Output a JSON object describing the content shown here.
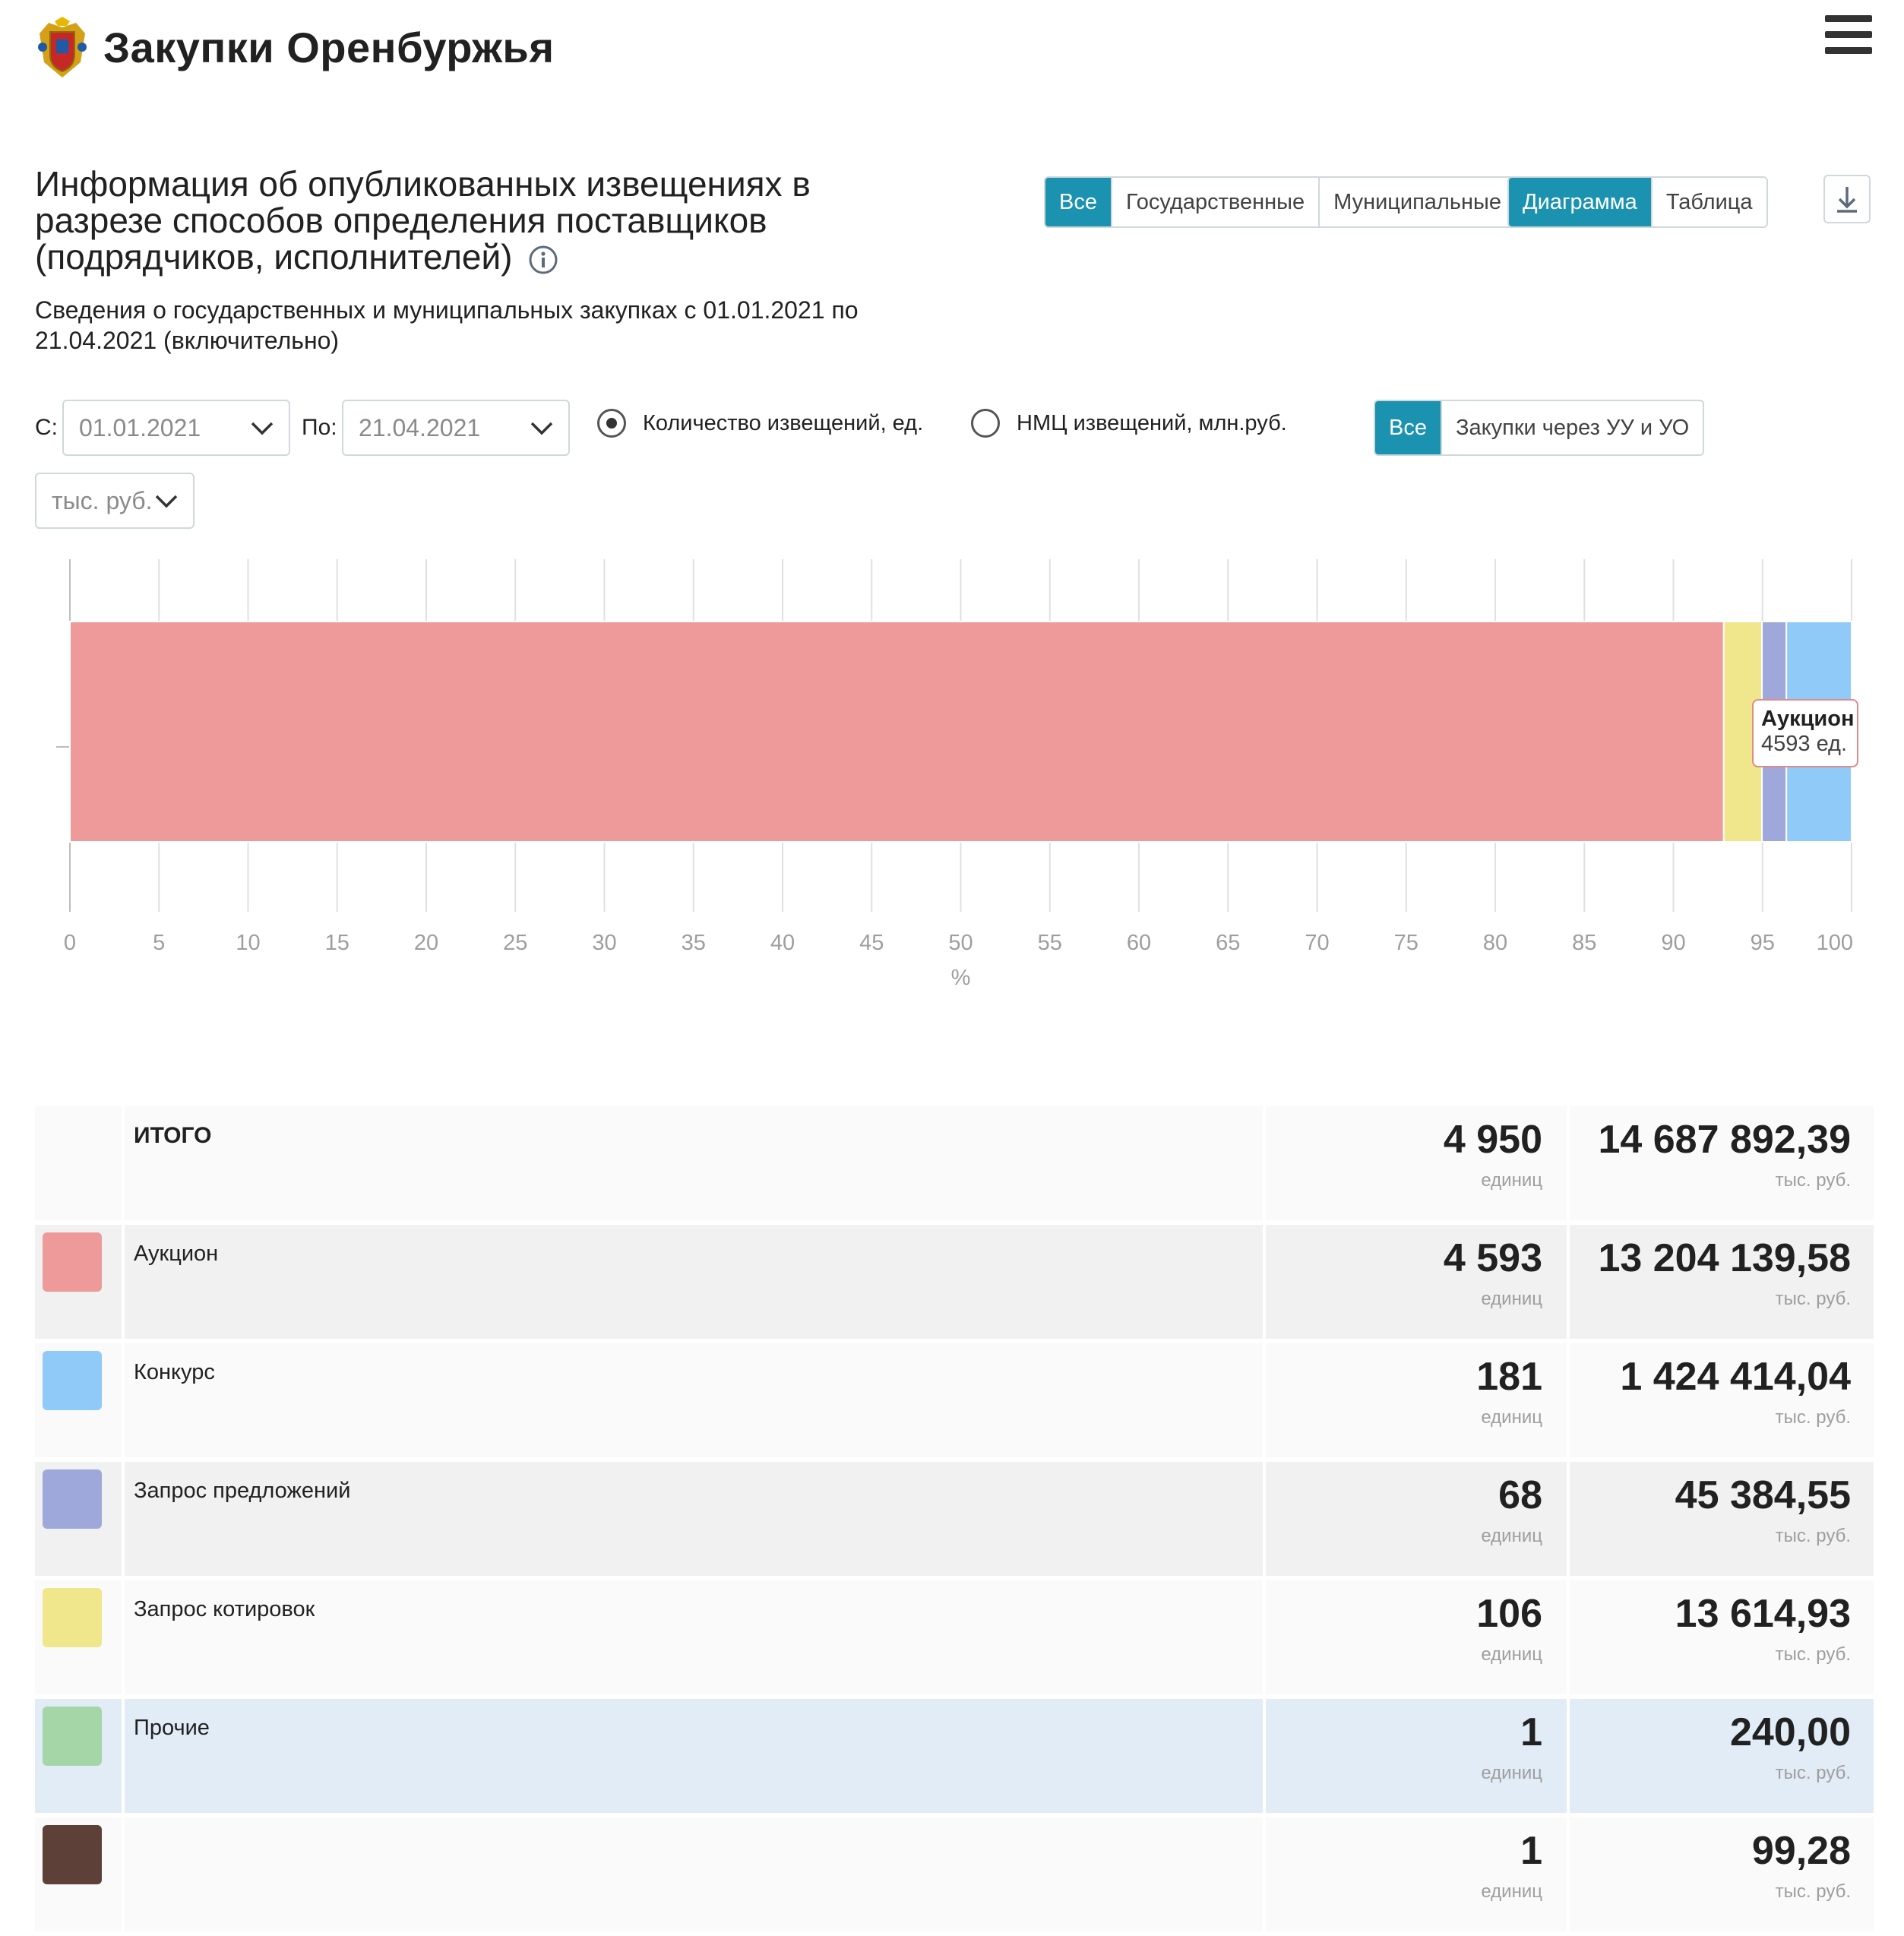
{
  "header": {
    "site_title": "Закупки Оренбуржья",
    "logo_icon": "coat-of-arms-icon",
    "menu_icon": "hamburger-icon"
  },
  "page": {
    "title": "Информация об опубликованных извещениях в разрезе способов определения поставщиков (подрядчиков, исполнителей)",
    "subtitle": "Сведения о государственных и муниципальных закупках с 01.01.2021 по 21.04.2021 (включительно)"
  },
  "type_filter": {
    "all": "Все",
    "state": "Государственные",
    "municipal": "Муниципальные",
    "selected": "Все"
  },
  "view_toggle": {
    "chart": "Диаграмма",
    "table": "Таблица",
    "selected": "Диаграмма"
  },
  "filters": {
    "from_label": "С:",
    "from_value": "01.01.2021",
    "to_label": "По:",
    "to_value": "21.04.2021",
    "units_value": "тыс. руб.",
    "metric_count": "Количество извещений, ед.",
    "metric_nmc": "НМЦ извещений, млн.руб.",
    "metric_selected": "count",
    "proc_all": "Все",
    "proc_uu": "Закупки через УУ и УО"
  },
  "chart_data": {
    "type": "bar",
    "orientation": "horizontal-stacked-percent",
    "xlabel": "%",
    "xlim": [
      0,
      100
    ],
    "ticks": [
      "0",
      "5",
      "10",
      "15",
      "20",
      "25",
      "30",
      "35",
      "40",
      "45",
      "50",
      "55",
      "60",
      "65",
      "70",
      "75",
      "80",
      "85",
      "90",
      "95",
      "100"
    ],
    "grid": true,
    "series": [
      {
        "name": "Аукцион",
        "value": 4593,
        "color": "#ef9a9a"
      },
      {
        "name": "Запрос котировок",
        "value": 106,
        "color": "#f0e68c"
      },
      {
        "name": "Запрос предложений",
        "value": 68,
        "color": "#9fa8da"
      },
      {
        "name": "Конкурс",
        "value": 181,
        "color": "#90caf9"
      }
    ],
    "tooltip": {
      "title": "Аукцион",
      "value": "4593 ед."
    }
  },
  "table": {
    "count_unit": "единиц",
    "sum_unit": "тыс. руб.",
    "rows": [
      {
        "name": "ИТОГО",
        "count": "4 950",
        "sum": "14 687 892,39",
        "color": ""
      },
      {
        "name": "Аукцион",
        "count": "4 593",
        "sum": "13 204 139,58",
        "color": "#ef9a9a"
      },
      {
        "name": "Конкурс",
        "count": "181",
        "sum": "1 424 414,04",
        "color": "#90caf9"
      },
      {
        "name": "Запрос предложений",
        "count": "68",
        "sum": "45 384,55",
        "color": "#9fa8da"
      },
      {
        "name": "Запрос котировок",
        "count": "106",
        "sum": "13 614,93",
        "color": "#f0e68c"
      },
      {
        "name": "Прочие",
        "count": "1",
        "sum": "240,00",
        "color": "#a5d6a7"
      },
      {
        "name": "",
        "count": "1",
        "sum": "99,28",
        "color": "#5d4037"
      }
    ]
  }
}
